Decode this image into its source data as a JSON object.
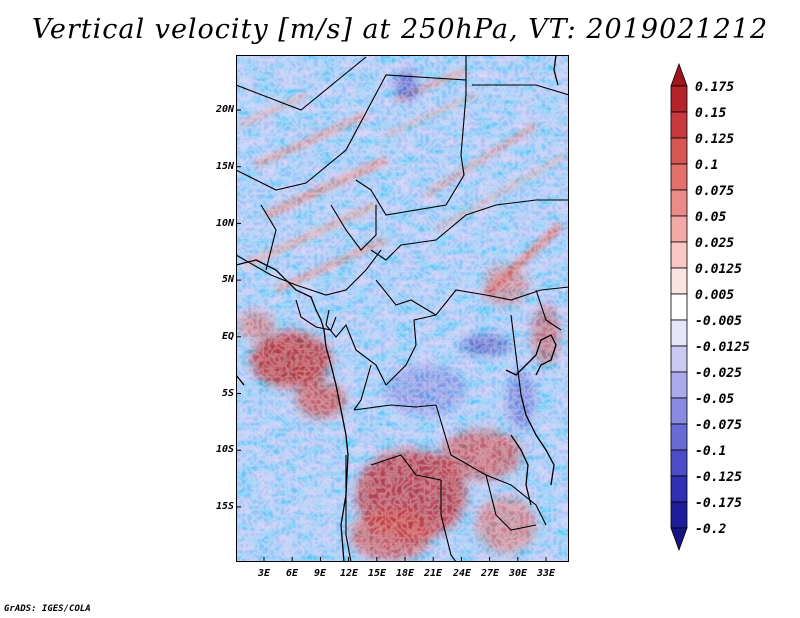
{
  "title": "Vertical velocity [m/s] at 250hPa, VT: 2019021212",
  "credit": "GrADS: IGES/COLA",
  "map": {
    "variable": "Vertical velocity",
    "units": "m/s",
    "level": "250hPa",
    "valid_time": "2019021212",
    "lat_labels": [
      "20N",
      "15N",
      "10N",
      "5N",
      "EQ",
      "5S",
      "10S",
      "15S"
    ],
    "lon_labels": [
      "3E",
      "6E",
      "9E",
      "12E",
      "15E",
      "18E",
      "21E",
      "24E",
      "27E",
      "30E",
      "33E"
    ]
  },
  "colorbar": {
    "labels": [
      "0.175",
      "0.15",
      "0.125",
      "0.1",
      "0.075",
      "0.05",
      "0.025",
      "0.0125",
      "0.005",
      "-0.005",
      "-0.0125",
      "-0.025",
      "-0.05",
      "-0.075",
      "-0.1",
      "-0.125",
      "-0.175",
      "-0.2"
    ],
    "colors": [
      "#a0161a",
      "#b5232a",
      "#c8393d",
      "#d75653",
      "#e2716c",
      "#eb8c88",
      "#f2aaa6",
      "#f7c8c5",
      "#fbe3e1",
      "#ffffff",
      "#e6e6fb",
      "#c9c9f3",
      "#aaaaec",
      "#8a8ae3",
      "#6b6bd8",
      "#4c4cc8",
      "#3030b4",
      "#1d1d9a",
      "#141482"
    ]
  }
}
